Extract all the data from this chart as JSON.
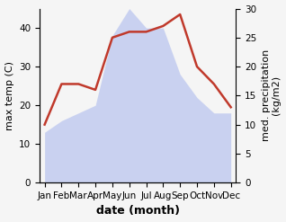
{
  "months": [
    "Jan",
    "Feb",
    "Mar",
    "Apr",
    "May",
    "Jun",
    "Jul",
    "Aug",
    "Sep",
    "Oct",
    "Nov",
    "Dec"
  ],
  "max_temp": [
    13,
    16,
    18,
    20,
    38,
    45,
    40,
    40,
    28,
    22,
    18,
    18
  ],
  "precipitation": [
    10,
    17,
    17,
    16,
    25,
    26,
    26,
    27,
    29,
    20,
    17,
    13
  ],
  "temp_fill_color": "#c5cef0",
  "precip_color": "#c0392b",
  "xlabel": "date (month)",
  "ylabel_left": "max temp (C)",
  "ylabel_right": "med. precipitation\n(kg/m2)",
  "ylim_left": [
    0,
    45
  ],
  "ylim_right": [
    0,
    30
  ],
  "yticks_left": [
    0,
    10,
    20,
    30,
    40
  ],
  "yticks_right": [
    0,
    5,
    10,
    15,
    20,
    25,
    30
  ],
  "background_color": "#f5f5f5",
  "label_fontsize": 8,
  "tick_fontsize": 7.5,
  "xlabel_fontsize": 9
}
